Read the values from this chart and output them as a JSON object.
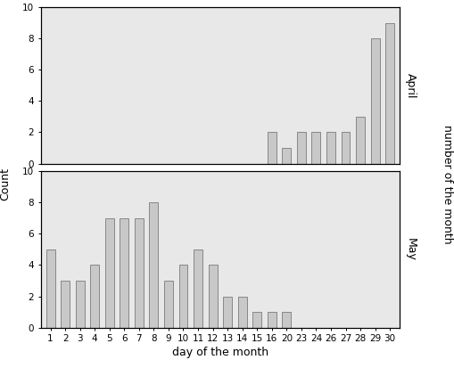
{
  "april": {
    "days": [
      16,
      20,
      23,
      24,
      26,
      27,
      28,
      29,
      30
    ],
    "counts": [
      2,
      1,
      2,
      2,
      2,
      2,
      3,
      8,
      9
    ],
    "label": "April"
  },
  "may": {
    "days": [
      1,
      2,
      3,
      4,
      5,
      6,
      7,
      8,
      9,
      10,
      11,
      12,
      13,
      14,
      15,
      16,
      20
    ],
    "counts": [
      5,
      3,
      3,
      4,
      7,
      7,
      7,
      8,
      3,
      4,
      5,
      4,
      2,
      2,
      1,
      1,
      1
    ],
    "label": "May"
  },
  "all_xticks": [
    1,
    2,
    3,
    4,
    5,
    6,
    7,
    8,
    9,
    10,
    11,
    12,
    13,
    14,
    15,
    16,
    20,
    23,
    24,
    26,
    27,
    28,
    29,
    30
  ],
  "bar_color": "#c8c8c8",
  "bar_edgecolor": "#7a7a7a",
  "bg_color": "#e8e8e8",
  "fig_bg_color": "#ffffff",
  "border_color": "#000000",
  "ylabel": "Count",
  "xlabel": "day of the month",
  "right_label": "number of the month",
  "april_label": "April",
  "may_label": "May",
  "ylim": [
    0,
    10
  ],
  "yticks": [
    0,
    2,
    4,
    6,
    8,
    10
  ],
  "axis_label_fontsize": 9,
  "tick_fontsize": 7.5,
  "bar_width": 0.6
}
